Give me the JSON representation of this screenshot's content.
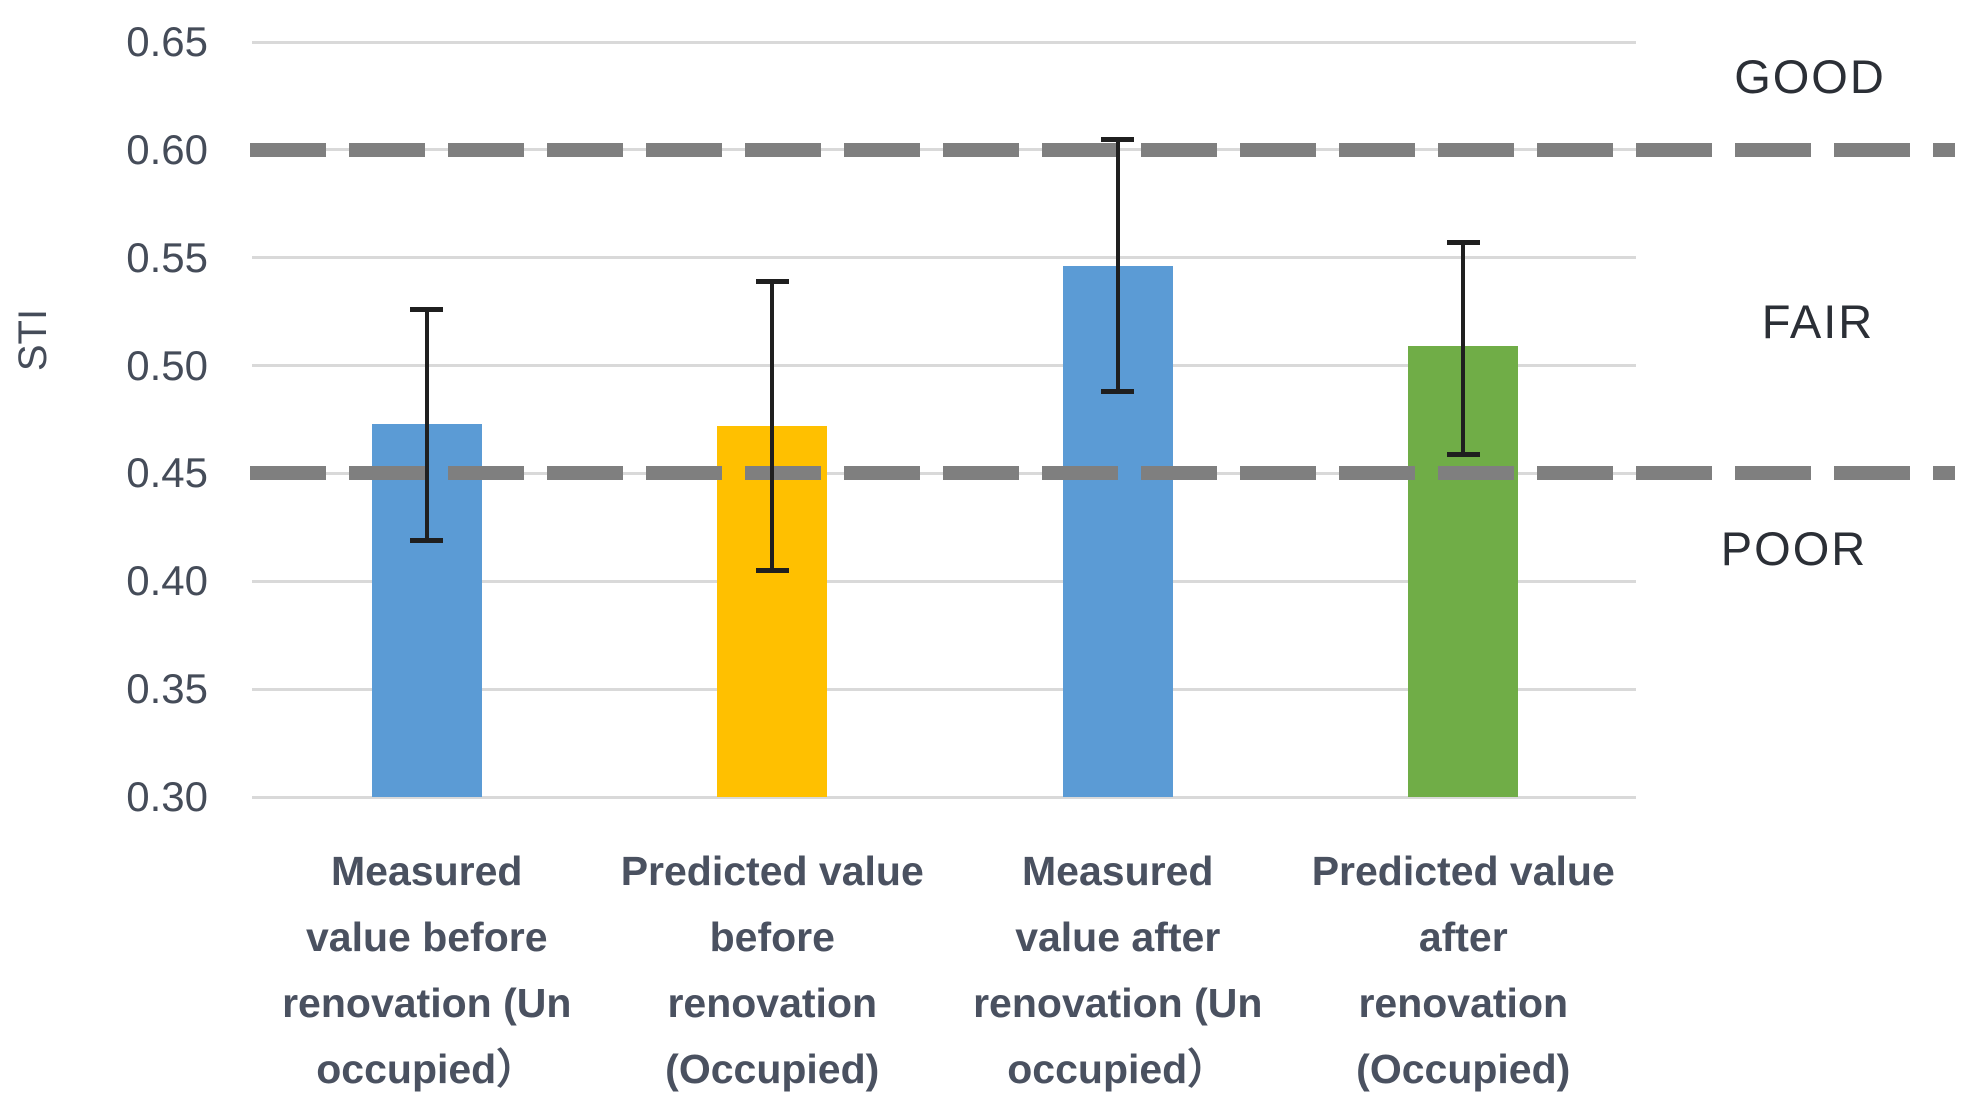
{
  "chart_data": {
    "type": "bar",
    "title": "",
    "ylabel": "STI",
    "xlabel": "",
    "ylim": [
      0.3,
      0.65
    ],
    "ytick_step": 0.05,
    "yticks": [
      0.65,
      0.6,
      0.55,
      0.5,
      0.45,
      0.4,
      0.35,
      0.3
    ],
    "ytick_labels": [
      "0.65",
      "0.60",
      "0.55",
      "0.50",
      "0.45",
      "0.40",
      "0.35",
      "0.30"
    ],
    "grid": true,
    "legend": "none",
    "categories": [
      {
        "label_lines": [
          "Measured",
          "value before",
          "renovation (Un",
          "occupied）"
        ],
        "value": 0.473,
        "err_up": 0.053,
        "err_down": 0.054,
        "color": "#5B9BD5"
      },
      {
        "label_lines": [
          "Predicted value",
          "before",
          "renovation",
          "(Occupied)"
        ],
        "value": 0.472,
        "err_up": 0.067,
        "err_down": 0.067,
        "color": "#FFC000"
      },
      {
        "label_lines": [
          "Measured",
          "value after",
          "renovation (Un",
          "occupied）"
        ],
        "value": 0.546,
        "err_up": 0.059,
        "err_down": 0.058,
        "color": "#5B9BD5"
      },
      {
        "label_lines": [
          "Predicted value",
          "after",
          "renovation",
          "(Occupied)"
        ],
        "value": 0.509,
        "err_up": 0.048,
        "err_down": 0.05,
        "color": "#70AD47"
      }
    ],
    "threshold_lines": [
      {
        "value": 0.6,
        "style": "dashed",
        "color": "#7F7F7F"
      },
      {
        "value": 0.45,
        "style": "dashed",
        "color": "#7F7F7F"
      }
    ],
    "zone_labels": [
      {
        "text": "GOOD",
        "y_value": 0.634,
        "x_center": 1810
      },
      {
        "text": "FAIR",
        "y_value": 0.52,
        "x_center": 1818
      },
      {
        "text": "POOR",
        "y_value": 0.415,
        "x_center": 1794
      }
    ],
    "colors": {
      "gridline": "#D9D9D9",
      "error_bar": "#1F1F1F",
      "tick_text": "#454C59",
      "category_text": "#4A5160",
      "zone_text": "#2B2F36"
    }
  }
}
